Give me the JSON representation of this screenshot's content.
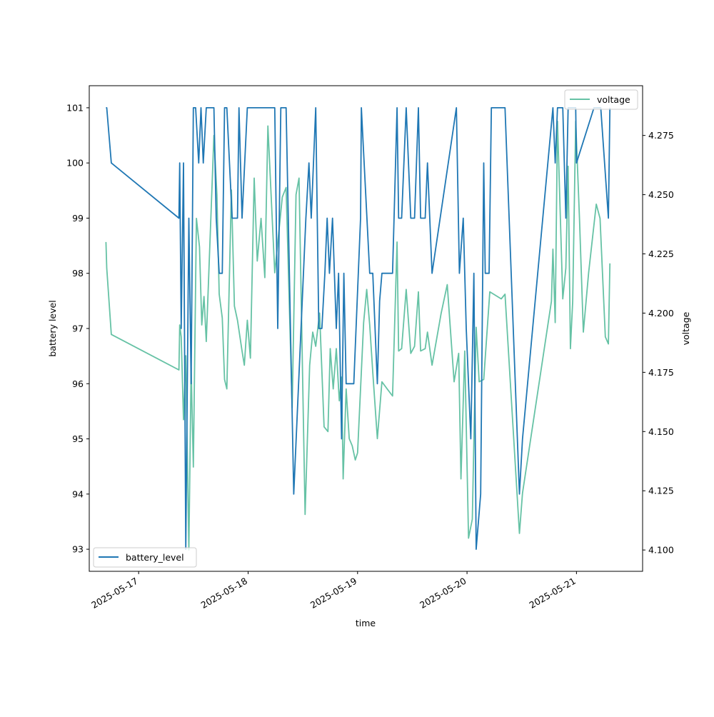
{
  "chart_data": {
    "type": "line",
    "xlabel": "time",
    "x_ticks": [
      "2025-05-17",
      "2025-05-18",
      "2025-05-19",
      "2025-05-20",
      "2025-05-21"
    ],
    "x_range_days": [
      "2025-05-16 13:10",
      "2025-05-21 14:30"
    ],
    "axes": [
      {
        "side": "left",
        "ylabel": "battery level",
        "ylim": [
          92.6,
          101.4
        ],
        "ticks": [
          93,
          94,
          95,
          96,
          97,
          98,
          99,
          100,
          101
        ],
        "tick_labels": [
          "93",
          "94",
          "95",
          "96",
          "97",
          "98",
          "99",
          "100",
          "101"
        ],
        "legend": "lower-left"
      },
      {
        "side": "right",
        "ylabel": "voltage",
        "ylim": [
          4.091,
          4.296
        ],
        "ticks": [
          4.1,
          4.125,
          4.15,
          4.175,
          4.2,
          4.225,
          4.25,
          4.275
        ],
        "tick_labels": [
          "4.100",
          "4.125",
          "4.150",
          "4.175",
          "4.200",
          "4.225",
          "4.250",
          "4.275"
        ],
        "legend": "upper-right"
      }
    ],
    "grid": false,
    "series": [
      {
        "name": "battery_level",
        "axis": "left",
        "color": "#1f77b4",
        "points": [
          [
            "2025-05-16 16:50",
            101
          ],
          [
            "2025-05-16 17:00",
            101
          ],
          [
            "2025-05-16 18:00",
            100
          ],
          [
            "2025-05-17 08:50",
            99
          ],
          [
            "2025-05-17 09:00",
            100
          ],
          [
            "2025-05-17 09:20",
            97
          ],
          [
            "2025-05-17 09:50",
            100
          ],
          [
            "2025-05-17 10:20",
            93
          ],
          [
            "2025-05-17 11:00",
            99
          ],
          [
            "2025-05-17 11:30",
            96
          ],
          [
            "2025-05-17 12:00",
            101
          ],
          [
            "2025-05-17 12:30",
            101
          ],
          [
            "2025-05-17 13:10",
            100
          ],
          [
            "2025-05-17 13:40",
            101
          ],
          [
            "2025-05-17 14:10",
            100
          ],
          [
            "2025-05-17 14:50",
            101
          ],
          [
            "2025-05-17 16:30",
            101
          ],
          [
            "2025-05-17 17:00",
            99
          ],
          [
            "2025-05-17 17:40",
            98
          ],
          [
            "2025-05-17 18:20",
            98
          ],
          [
            "2025-05-17 18:50",
            101
          ],
          [
            "2025-05-17 19:20",
            101
          ],
          [
            "2025-05-17 20:30",
            99
          ],
          [
            "2025-05-17 21:40",
            99
          ],
          [
            "2025-05-17 22:00",
            101
          ],
          [
            "2025-05-17 22:40",
            99
          ],
          [
            "2025-05-17 23:50",
            101
          ],
          [
            "2025-05-18 05:50",
            101
          ],
          [
            "2025-05-18 06:30",
            97
          ],
          [
            "2025-05-18 07:10",
            101
          ],
          [
            "2025-05-18 08:20",
            101
          ],
          [
            "2025-05-18 10:00",
            94
          ],
          [
            "2025-05-18 12:40",
            99
          ],
          [
            "2025-05-18 13:20",
            100
          ],
          [
            "2025-05-18 13:50",
            99
          ],
          [
            "2025-05-18 14:50",
            101
          ],
          [
            "2025-05-18 15:30",
            97
          ],
          [
            "2025-05-18 16:10",
            97
          ],
          [
            "2025-05-18 16:50",
            98
          ],
          [
            "2025-05-18 17:20",
            99
          ],
          [
            "2025-05-18 17:50",
            98
          ],
          [
            "2025-05-18 18:30",
            99
          ],
          [
            "2025-05-18 19:20",
            97
          ],
          [
            "2025-05-18 19:50",
            98
          ],
          [
            "2025-05-18 20:30",
            95
          ],
          [
            "2025-05-18 21:00",
            98
          ],
          [
            "2025-05-18 21:30",
            96
          ],
          [
            "2025-05-18 23:10",
            96
          ],
          [
            "2025-05-19 00:40",
            99
          ],
          [
            "2025-05-19 00:50",
            101
          ],
          [
            "2025-05-19 02:40",
            98
          ],
          [
            "2025-05-19 03:20",
            98
          ],
          [
            "2025-05-19 04:20",
            96
          ],
          [
            "2025-05-19 04:50",
            97.5
          ],
          [
            "2025-05-19 05:20",
            98
          ],
          [
            "2025-05-19 07:20",
            98
          ],
          [
            "2025-05-19 07:40",
            98
          ],
          [
            "2025-05-19 08:40",
            101
          ],
          [
            "2025-05-19 09:00",
            99
          ],
          [
            "2025-05-19 09:40",
            99
          ],
          [
            "2025-05-19 10:40",
            101
          ],
          [
            "2025-05-19 11:40",
            99
          ],
          [
            "2025-05-19 12:30",
            99
          ],
          [
            "2025-05-19 13:20",
            101
          ],
          [
            "2025-05-19 13:50",
            99
          ],
          [
            "2025-05-19 14:50",
            99
          ],
          [
            "2025-05-19 15:20",
            100
          ],
          [
            "2025-05-19 16:20",
            98
          ],
          [
            "2025-05-19 21:40",
            101
          ],
          [
            "2025-05-19 22:20",
            98
          ],
          [
            "2025-05-19 23:10",
            99
          ],
          [
            "2025-05-19 23:50",
            97
          ],
          [
            "2025-05-20 00:50",
            95
          ],
          [
            "2025-05-20 01:30",
            98
          ],
          [
            "2025-05-20 02:00",
            93
          ],
          [
            "2025-05-20 03:00",
            94
          ],
          [
            "2025-05-20 03:40",
            100
          ],
          [
            "2025-05-20 04:00",
            98
          ],
          [
            "2025-05-20 04:50",
            98
          ],
          [
            "2025-05-20 05:20",
            101
          ],
          [
            "2025-05-20 07:30",
            101
          ],
          [
            "2025-05-20 08:20",
            101
          ],
          [
            "2025-05-20 11:30",
            94
          ],
          [
            "2025-05-20 12:10",
            95
          ],
          [
            "2025-05-20 18:50",
            101
          ],
          [
            "2025-05-20 19:20",
            100
          ],
          [
            "2025-05-20 19:50",
            101
          ],
          [
            "2025-05-20 21:00",
            101
          ],
          [
            "2025-05-20 21:40",
            99
          ],
          [
            "2025-05-20 22:10",
            101
          ],
          [
            "2025-05-20 22:50",
            101
          ],
          [
            "2025-05-20 23:50",
            101
          ],
          [
            "2025-05-21 00:00",
            100
          ],
          [
            "2025-05-21 03:50",
            101
          ],
          [
            "2025-05-21 05:20",
            101
          ],
          [
            "2025-05-21 07:00",
            99
          ],
          [
            "2025-05-21 07:20",
            101
          ]
        ]
      },
      {
        "name": "voltage",
        "axis": "right",
        "color": "#66c2a5",
        "points": [
          [
            "2025-05-16 16:50",
            4.23
          ],
          [
            "2025-05-16 17:00",
            4.219
          ],
          [
            "2025-05-16 18:00",
            4.191
          ],
          [
            "2025-05-17 08:50",
            4.176
          ],
          [
            "2025-05-17 09:00",
            4.195
          ],
          [
            "2025-05-17 09:20",
            4.19
          ],
          [
            "2025-05-17 09:50",
            4.155
          ],
          [
            "2025-05-17 10:20",
            4.182
          ],
          [
            "2025-05-17 11:00",
            4.1
          ],
          [
            "2025-05-17 11:30",
            4.177
          ],
          [
            "2025-05-17 12:00",
            4.135
          ],
          [
            "2025-05-17 12:40",
            4.24
          ],
          [
            "2025-05-17 13:20",
            4.228
          ],
          [
            "2025-05-17 13:50",
            4.195
          ],
          [
            "2025-05-17 14:20",
            4.207
          ],
          [
            "2025-05-17 14:50",
            4.188
          ],
          [
            "2025-05-17 16:30",
            4.275
          ],
          [
            "2025-05-17 17:10",
            4.25
          ],
          [
            "2025-05-17 17:40",
            4.208
          ],
          [
            "2025-05-17 18:20",
            4.198
          ],
          [
            "2025-05-17 18:50",
            4.172
          ],
          [
            "2025-05-17 19:20",
            4.168
          ],
          [
            "2025-05-17 20:20",
            4.252
          ],
          [
            "2025-05-17 21:00",
            4.203
          ],
          [
            "2025-05-17 21:40",
            4.197
          ],
          [
            "2025-05-17 22:40",
            4.184
          ],
          [
            "2025-05-17 23:10",
            4.178
          ],
          [
            "2025-05-17 23:50",
            4.197
          ],
          [
            "2025-05-18 00:30",
            4.181
          ],
          [
            "2025-05-18 01:20",
            4.257
          ],
          [
            "2025-05-18 02:00",
            4.222
          ],
          [
            "2025-05-18 02:50",
            4.24
          ],
          [
            "2025-05-18 03:40",
            4.215
          ],
          [
            "2025-05-18 04:20",
            4.279
          ],
          [
            "2025-05-18 05:50",
            4.217
          ],
          [
            "2025-05-18 07:30",
            4.249
          ],
          [
            "2025-05-18 08:20",
            4.253
          ],
          [
            "2025-05-18 09:40",
            4.16
          ],
          [
            "2025-05-18 10:30",
            4.25
          ],
          [
            "2025-05-18 11:10",
            4.257
          ],
          [
            "2025-05-18 12:30",
            4.115
          ],
          [
            "2025-05-18 13:30",
            4.178
          ],
          [
            "2025-05-18 14:10",
            4.192
          ],
          [
            "2025-05-18 14:50",
            4.186
          ],
          [
            "2025-05-18 15:40",
            4.2
          ],
          [
            "2025-05-18 16:40",
            4.152
          ],
          [
            "2025-05-18 17:30",
            4.15
          ],
          [
            "2025-05-18 18:00",
            4.185
          ],
          [
            "2025-05-18 18:40",
            4.168
          ],
          [
            "2025-05-18 19:20",
            4.185
          ],
          [
            "2025-05-18 20:00",
            4.163
          ],
          [
            "2025-05-18 20:30",
            4.173
          ],
          [
            "2025-05-18 20:50",
            4.13
          ],
          [
            "2025-05-18 21:30",
            4.168
          ],
          [
            "2025-05-18 22:10",
            4.147
          ],
          [
            "2025-05-18 22:50",
            4.144
          ],
          [
            "2025-05-18 23:30",
            4.138
          ],
          [
            "2025-05-19 00:00",
            4.141
          ],
          [
            "2025-05-19 01:20",
            4.196
          ],
          [
            "2025-05-19 02:00",
            4.21
          ],
          [
            "2025-05-19 02:40",
            4.195
          ],
          [
            "2025-05-19 03:20",
            4.175
          ],
          [
            "2025-05-19 04:20",
            4.147
          ],
          [
            "2025-05-19 05:20",
            4.171
          ],
          [
            "2025-05-19 06:30",
            4.168
          ],
          [
            "2025-05-19 07:40",
            4.165
          ],
          [
            "2025-05-19 08:40",
            4.23
          ],
          [
            "2025-05-19 09:00",
            4.184
          ],
          [
            "2025-05-19 09:40",
            4.185
          ],
          [
            "2025-05-19 10:40",
            4.21
          ],
          [
            "2025-05-19 11:40",
            4.183
          ],
          [
            "2025-05-19 12:30",
            4.186
          ],
          [
            "2025-05-19 13:20",
            4.209
          ],
          [
            "2025-05-19 13:50",
            4.184
          ],
          [
            "2025-05-19 14:50",
            4.185
          ],
          [
            "2025-05-19 15:20",
            4.192
          ],
          [
            "2025-05-19 16:20",
            4.178
          ],
          [
            "2025-05-19 18:20",
            4.2
          ],
          [
            "2025-05-19 19:40",
            4.212
          ],
          [
            "2025-05-19 21:10",
            4.171
          ],
          [
            "2025-05-19 22:10",
            4.183
          ],
          [
            "2025-05-19 22:40",
            4.13
          ],
          [
            "2025-05-19 23:30",
            4.184
          ],
          [
            "2025-05-20 00:20",
            4.105
          ],
          [
            "2025-05-20 01:10",
            4.113
          ],
          [
            "2025-05-20 02:00",
            4.194
          ],
          [
            "2025-05-20 02:40",
            4.171
          ],
          [
            "2025-05-20 03:40",
            4.172
          ],
          [
            "2025-05-20 05:00",
            4.209
          ],
          [
            "2025-05-20 07:30",
            4.206
          ],
          [
            "2025-05-20 08:20",
            4.208
          ],
          [
            "2025-05-20 11:30",
            4.107
          ],
          [
            "2025-05-20 12:10",
            4.124
          ],
          [
            "2025-05-20 18:30",
            4.205
          ],
          [
            "2025-05-20 18:50",
            4.227
          ],
          [
            "2025-05-20 19:20",
            4.196
          ],
          [
            "2025-05-20 19:50",
            4.281
          ],
          [
            "2025-05-20 21:00",
            4.206
          ],
          [
            "2025-05-20 21:40",
            4.219
          ],
          [
            "2025-05-20 22:10",
            4.262
          ],
          [
            "2025-05-20 22:40",
            4.185
          ],
          [
            "2025-05-20 23:10",
            4.205
          ],
          [
            "2025-05-20 23:50",
            4.281
          ],
          [
            "2025-05-21 00:40",
            4.24
          ],
          [
            "2025-05-21 01:30",
            4.192
          ],
          [
            "2025-05-21 02:40",
            4.217
          ],
          [
            "2025-05-21 04:20",
            4.246
          ],
          [
            "2025-05-21 05:10",
            4.24
          ],
          [
            "2025-05-21 06:20",
            4.19
          ],
          [
            "2025-05-21 07:00",
            4.187
          ],
          [
            "2025-05-21 07:20",
            4.221
          ]
        ]
      }
    ]
  }
}
